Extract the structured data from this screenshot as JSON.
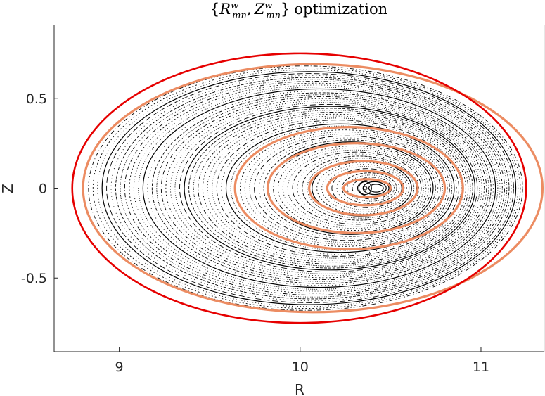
{
  "chart_data": {
    "type": "scatter",
    "title": "{R^w_mn, Z^w_mn} optimization",
    "title_parts": {
      "open": "{",
      "r": "R",
      "r_sup": "w",
      "r_sub": "mn",
      "comma": ",",
      "z": "Z",
      "z_sup": "w",
      "z_sub": "mn",
      "close": "}",
      "rest": "optimization"
    },
    "xlabel": "R",
    "ylabel": "Z",
    "xlim": [
      8.64,
      11.35
    ],
    "ylim": [
      -0.91,
      0.91
    ],
    "xticks": [
      {
        "value": 9,
        "label": "9"
      },
      {
        "value": 10,
        "label": "10"
      },
      {
        "value": 11,
        "label": "11"
      }
    ],
    "yticks": [
      {
        "value": 0.5,
        "label": "0.5"
      },
      {
        "value": 0,
        "label": "0"
      },
      {
        "value": -0.5,
        "label": "-0.5"
      }
    ],
    "grid": false,
    "legend": "none",
    "magnetic_axis": {
      "R": 10.36,
      "Z": 0.0
    },
    "poincare_sections": {
      "color": "#000000",
      "inner_R_min": 10.38,
      "inner_R_max": 10.46,
      "inner_Z_half": 0.022,
      "outer_R_min": 8.83,
      "outer_R_max": 11.23,
      "outer_Z_half": 0.68,
      "count": 60
    },
    "boundary_target": {
      "color": "#e60000",
      "R_min": 8.74,
      "R_max": 11.25,
      "Z_max": 0.75,
      "Z_min": -0.75,
      "center_R": 10.0
    },
    "optimized_surfaces": {
      "color": "#ec8c62",
      "surfaces": [
        {
          "R_min": 8.8,
          "R_max": 11.34,
          "Z_half": 0.69
        },
        {
          "R_min": 9.64,
          "R_max": 10.9,
          "Z_half": 0.34
        },
        {
          "R_min": 9.82,
          "R_max": 10.8,
          "Z_half": 0.25
        },
        {
          "R_min": 10.05,
          "R_max": 10.65,
          "Z_half": 0.15
        },
        {
          "R_min": 10.15,
          "R_max": 10.57,
          "Z_half": 0.095
        },
        {
          "R_min": 10.24,
          "R_max": 10.5,
          "Z_half": 0.05
        }
      ]
    }
  }
}
